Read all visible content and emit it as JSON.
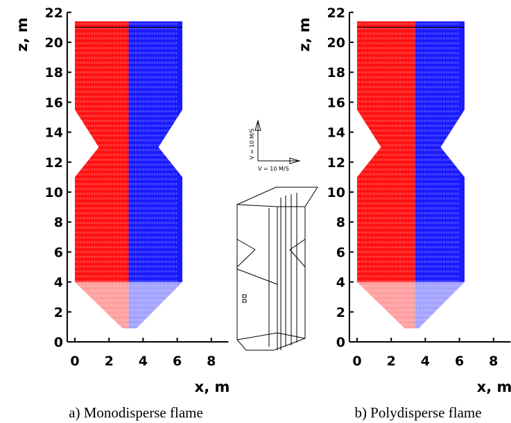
{
  "chart_data": [
    {
      "type": "vector",
      "caption": "a) Monodisperse flame",
      "xlabel": "x, m",
      "ylabel": "z, m",
      "xlim": [
        -0.45,
        9
      ],
      "ylim": [
        0,
        22
      ],
      "xticks": [
        0,
        2,
        4,
        6,
        8
      ],
      "yticks": [
        0,
        2,
        4,
        6,
        8,
        10,
        12,
        14,
        16,
        18,
        20,
        22
      ],
      "series": [
        {
          "color": "#ff1010"
        },
        {
          "color": "#1a1aff"
        }
      ]
    },
    {
      "type": "vector",
      "caption": "b) Polydisperse flame",
      "xlabel": "x, m",
      "ylabel": "z, m",
      "xlim": [
        -0.45,
        9
      ],
      "ylim": [
        0,
        22
      ],
      "xticks": [
        0,
        2,
        4,
        6,
        8
      ],
      "yticks": [
        0,
        2,
        4,
        6,
        8,
        10,
        12,
        14,
        16,
        18,
        20,
        22
      ],
      "series": [
        {
          "color": "#ff1010"
        },
        {
          "color": "#1a1aff"
        }
      ]
    }
  ],
  "inset": {
    "vertical_label": "V = 10 M/S",
    "horizontal_label": "V = 10 M/S"
  }
}
